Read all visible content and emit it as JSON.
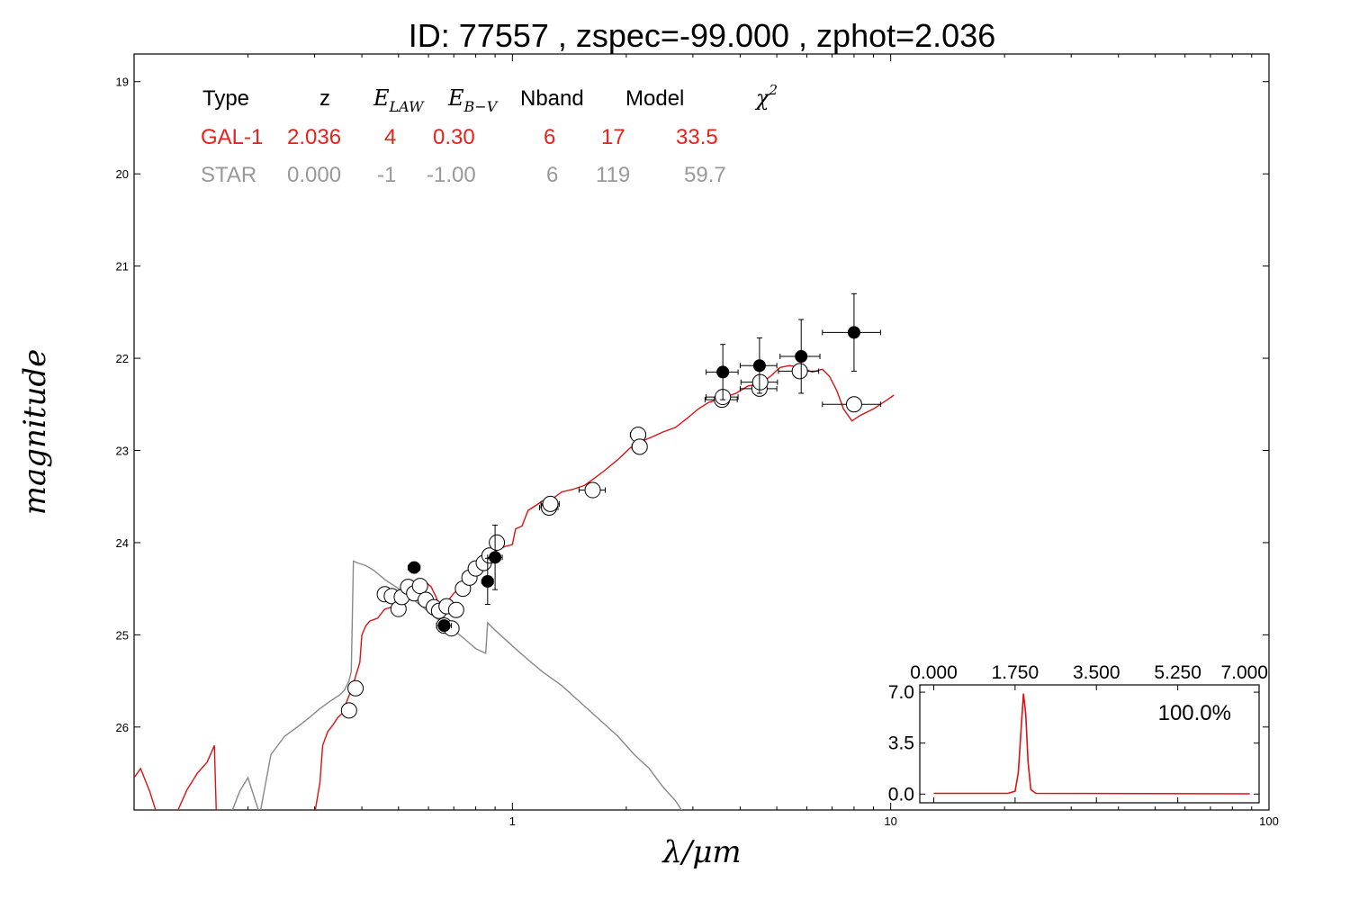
{
  "chart_data": {
    "type": "scatter",
    "title": "ID:  77557 , zspec=-99.000 , zphot=2.036",
    "xlabel": "λ/μm",
    "ylabel": "magnitude",
    "xscale": "log",
    "xlim": [
      0.1,
      100
    ],
    "ylim": [
      26.9,
      18.7
    ],
    "x_ticks": [
      "1",
      "10",
      "100"
    ],
    "y_ticks": [
      "19",
      "20",
      "21",
      "22",
      "23",
      "24",
      "25",
      "26"
    ],
    "y_tick_values": [
      19,
      20,
      21,
      22,
      23,
      24,
      25,
      26
    ],
    "colors": {
      "galaxy": "#dd1111",
      "star": "#888888",
      "points": "#000000"
    },
    "table": {
      "header": {
        "type": "Type",
        "z": "z",
        "elaw": "E",
        "elaw_sub": "LAW",
        "ebv": "E",
        "ebv_sub": "B−V",
        "nband": "Nband",
        "model": "Model",
        "chi2": "χ",
        "chi2_sup": "2"
      },
      "rows": [
        {
          "type": "GAL-1",
          "z": "2.036",
          "elaw": "4",
          "ebv": "0.30",
          "nband": "6",
          "model": "17",
          "chi2": "33.5",
          "color": "#e8221a"
        },
        {
          "type": "STAR",
          "z": "0.000",
          "elaw": "-1",
          "ebv": "-1.00",
          "nband": "6",
          "model": "119",
          "chi2": "59.7",
          "color": "#999999"
        }
      ]
    },
    "observed_points": [
      {
        "x": 0.55,
        "y": 24.27,
        "xerr": 0.02,
        "yerr": 0.06
      },
      {
        "x": 0.66,
        "y": 24.9,
        "xerr": 0.03,
        "yerr": 0.05
      },
      {
        "x": 0.86,
        "y": 24.42,
        "xerr": 0.03,
        "yerr": 0.25
      },
      {
        "x": 0.9,
        "y": 24.16,
        "xerr": 0.04,
        "yerr": 0.35
      },
      {
        "x": 3.6,
        "y": 22.15,
        "xerr": 0.35,
        "yerr": 0.3
      },
      {
        "x": 4.5,
        "y": 22.08,
        "xerr": 0.5,
        "yerr": 0.3
      },
      {
        "x": 5.8,
        "y": 21.98,
        "xerr": 0.7,
        "yerr": 0.4
      },
      {
        "x": 8.0,
        "y": 21.72,
        "xerr": 1.4,
        "yerr": 0.42
      }
    ],
    "model_points": [
      {
        "x": 0.37,
        "y": 25.82,
        "xerr": 0.015
      },
      {
        "x": 0.385,
        "y": 25.58,
        "xerr": 0.015
      },
      {
        "x": 0.46,
        "y": 24.56,
        "xerr": 0.01
      },
      {
        "x": 0.48,
        "y": 24.58,
        "xerr": 0.01
      },
      {
        "x": 0.5,
        "y": 24.72,
        "xerr": 0.01
      },
      {
        "x": 0.51,
        "y": 24.59,
        "xerr": 0.01
      },
      {
        "x": 0.53,
        "y": 24.48,
        "xerr": 0.01
      },
      {
        "x": 0.55,
        "y": 24.55,
        "xerr": 0.01
      },
      {
        "x": 0.57,
        "y": 24.47,
        "xerr": 0.01
      },
      {
        "x": 0.59,
        "y": 24.62,
        "xerr": 0.01
      },
      {
        "x": 0.62,
        "y": 24.7,
        "xerr": 0.01
      },
      {
        "x": 0.64,
        "y": 24.74,
        "xerr": 0.01
      },
      {
        "x": 0.66,
        "y": 24.9,
        "xerr": 0.01
      },
      {
        "x": 0.67,
        "y": 24.69,
        "xerr": 0.01
      },
      {
        "x": 0.69,
        "y": 24.93,
        "xerr": 0.01
      },
      {
        "x": 0.71,
        "y": 24.73,
        "xerr": 0.01
      },
      {
        "x": 0.74,
        "y": 24.5,
        "xerr": 0.01
      },
      {
        "x": 0.77,
        "y": 24.38,
        "xerr": 0.01
      },
      {
        "x": 0.8,
        "y": 24.28,
        "xerr": 0.01
      },
      {
        "x": 0.84,
        "y": 24.22,
        "xerr": 0.01
      },
      {
        "x": 0.87,
        "y": 24.14,
        "xerr": 0.02
      },
      {
        "x": 0.91,
        "y": 24.0,
        "xerr": 0.03
      },
      {
        "x": 1.25,
        "y": 23.62,
        "xerr": 0.07
      },
      {
        "x": 1.26,
        "y": 23.58,
        "xerr": 0.07
      },
      {
        "x": 1.63,
        "y": 23.43,
        "xerr": 0.13
      },
      {
        "x": 2.15,
        "y": 22.83,
        "xerr": 0.1
      },
      {
        "x": 2.17,
        "y": 22.96,
        "xerr": 0.1
      },
      {
        "x": 3.58,
        "y": 22.45,
        "xerr": 0.35
      },
      {
        "x": 3.6,
        "y": 22.42,
        "xerr": 0.35
      },
      {
        "x": 4.5,
        "y": 22.33,
        "xerr": 0.5
      },
      {
        "x": 4.52,
        "y": 22.26,
        "xerr": 0.5
      },
      {
        "x": 5.75,
        "y": 22.14,
        "xerr": 0.7
      },
      {
        "x": 8.0,
        "y": 22.5,
        "xerr": 1.4
      }
    ],
    "galaxy_model_curve": [
      [
        0.1,
        26.55
      ],
      [
        0.104,
        26.45
      ],
      [
        0.11,
        26.7
      ],
      [
        0.115,
        26.95
      ],
      [
        0.121,
        26.95
      ],
      [
        0.13,
        26.92
      ],
      [
        0.138,
        26.68
      ],
      [
        0.147,
        26.5
      ],
      [
        0.156,
        26.38
      ],
      [
        0.163,
        26.2
      ],
      [
        0.165,
        26.95
      ],
      [
        0.3,
        26.95
      ],
      [
        0.31,
        26.6
      ],
      [
        0.315,
        26.2
      ],
      [
        0.325,
        26.05
      ],
      [
        0.335,
        25.98
      ],
      [
        0.345,
        25.9
      ],
      [
        0.355,
        25.85
      ],
      [
        0.365,
        25.72
      ],
      [
        0.375,
        25.6
      ],
      [
        0.385,
        25.45
      ],
      [
        0.395,
        25.3
      ],
      [
        0.4,
        25.0
      ],
      [
        0.41,
        24.9
      ],
      [
        0.42,
        24.85
      ],
      [
        0.44,
        24.82
      ],
      [
        0.46,
        24.72
      ],
      [
        0.48,
        24.7
      ],
      [
        0.5,
        24.6
      ],
      [
        0.52,
        24.5
      ],
      [
        0.55,
        24.42
      ],
      [
        0.58,
        24.4
      ],
      [
        0.61,
        24.48
      ],
      [
        0.63,
        24.6
      ],
      [
        0.64,
        24.72
      ],
      [
        0.65,
        24.68
      ],
      [
        0.67,
        24.65
      ],
      [
        0.7,
        24.55
      ],
      [
        0.73,
        24.48
      ],
      [
        0.77,
        24.35
      ],
      [
        0.8,
        24.28
      ],
      [
        0.84,
        24.2
      ],
      [
        0.88,
        24.13
      ],
      [
        0.92,
        24.07
      ],
      [
        0.96,
        24.04
      ],
      [
        1.0,
        24.02
      ],
      [
        1.02,
        23.85
      ],
      [
        1.06,
        23.82
      ],
      [
        1.1,
        23.65
      ],
      [
        1.15,
        23.6
      ],
      [
        1.2,
        23.55
      ],
      [
        1.28,
        23.52
      ],
      [
        1.35,
        23.45
      ],
      [
        1.45,
        23.42
      ],
      [
        1.55,
        23.38
      ],
      [
        1.65,
        23.3
      ],
      [
        1.75,
        23.22
      ],
      [
        1.9,
        23.1
      ],
      [
        2.05,
        22.97
      ],
      [
        2.2,
        22.9
      ],
      [
        2.35,
        22.85
      ],
      [
        2.5,
        22.8
      ],
      [
        2.7,
        22.75
      ],
      [
        2.9,
        22.65
      ],
      [
        3.1,
        22.55
      ],
      [
        3.3,
        22.48
      ],
      [
        3.6,
        22.43
      ],
      [
        3.9,
        22.38
      ],
      [
        4.2,
        22.3
      ],
      [
        4.5,
        22.28
      ],
      [
        4.8,
        22.2
      ],
      [
        5.1,
        22.1
      ],
      [
        5.4,
        22.08
      ],
      [
        5.8,
        22.1
      ],
      [
        6.2,
        22.15
      ],
      [
        6.6,
        22.12
      ],
      [
        6.9,
        22.2
      ],
      [
        7.2,
        22.35
      ],
      [
        7.5,
        22.55
      ],
      [
        7.9,
        22.68
      ],
      [
        8.3,
        22.62
      ],
      [
        9.0,
        22.55
      ],
      [
        9.8,
        22.45
      ],
      [
        10.2,
        22.4
      ]
    ],
    "star_model_curve": [
      [
        0.18,
        26.95
      ],
      [
        0.19,
        26.7
      ],
      [
        0.2,
        26.55
      ],
      [
        0.215,
        26.95
      ],
      [
        0.23,
        26.3
      ],
      [
        0.25,
        26.1
      ],
      [
        0.27,
        26.0
      ],
      [
        0.29,
        25.9
      ],
      [
        0.31,
        25.8
      ],
      [
        0.33,
        25.72
      ],
      [
        0.35,
        25.65
      ],
      [
        0.36,
        25.6
      ],
      [
        0.37,
        25.5
      ],
      [
        0.375,
        25.4
      ],
      [
        0.38,
        24.2
      ],
      [
        0.39,
        24.22
      ],
      [
        0.41,
        24.25
      ],
      [
        0.43,
        24.3
      ],
      [
        0.46,
        24.4
      ],
      [
        0.5,
        24.5
      ],
      [
        0.54,
        24.6
      ],
      [
        0.58,
        24.7
      ],
      [
        0.62,
        24.8
      ],
      [
        0.66,
        24.88
      ],
      [
        0.7,
        24.95
      ],
      [
        0.75,
        25.05
      ],
      [
        0.8,
        25.15
      ],
      [
        0.85,
        25.2
      ],
      [
        0.86,
        24.87
      ],
      [
        0.9,
        24.95
      ],
      [
        1.0,
        25.12
      ],
      [
        1.1,
        25.27
      ],
      [
        1.2,
        25.4
      ],
      [
        1.35,
        25.55
      ],
      [
        1.5,
        25.72
      ],
      [
        1.7,
        25.92
      ],
      [
        1.9,
        26.1
      ],
      [
        2.1,
        26.3
      ],
      [
        2.3,
        26.45
      ],
      [
        2.5,
        26.65
      ],
      [
        2.7,
        26.8
      ],
      [
        2.85,
        26.95
      ]
    ],
    "inset": {
      "x_ticks": [
        "0.000",
        "1.750",
        "3.500",
        "5.250",
        "7.000"
      ],
      "x_tick_values": [
        0,
        1.75,
        3.5,
        5.25,
        7.0
      ],
      "y_ticks": [
        "7.0",
        "3.5",
        "0.0"
      ],
      "y_tick_values": [
        7.0,
        3.5,
        0.0
      ],
      "xlim": [
        -0.3,
        7.0
      ],
      "ylim": [
        -0.6,
        7.5
      ],
      "percent": "100.0%",
      "curve": [
        [
          0.0,
          0.05
        ],
        [
          1.6,
          0.05
        ],
        [
          1.75,
          0.2
        ],
        [
          1.82,
          1.5
        ],
        [
          1.88,
          4.5
        ],
        [
          1.93,
          6.9
        ],
        [
          1.98,
          5.5
        ],
        [
          2.03,
          2.2
        ],
        [
          2.09,
          0.3
        ],
        [
          2.2,
          0.05
        ],
        [
          6.8,
          0.02
        ]
      ]
    }
  }
}
